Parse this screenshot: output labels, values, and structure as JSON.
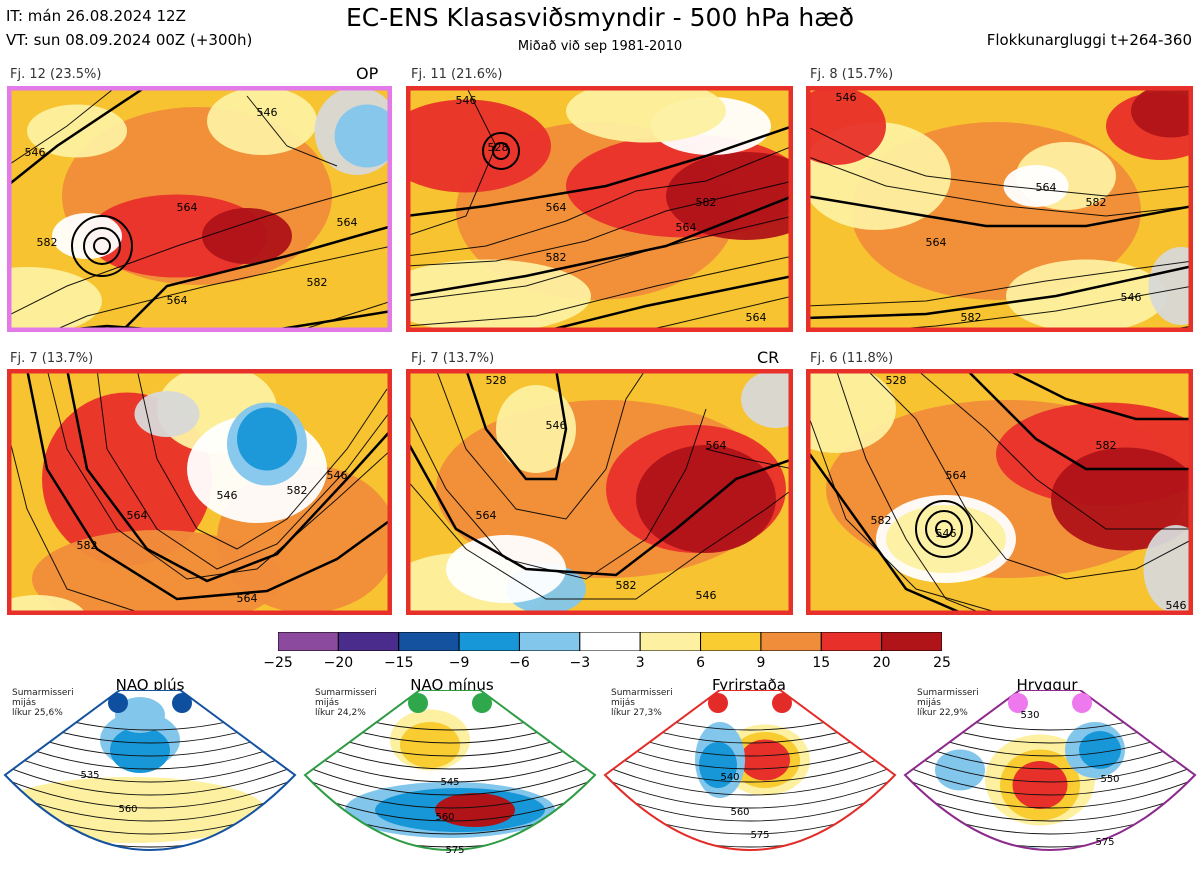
{
  "header": {
    "it": "IT: mán 26.08.2024 12Z",
    "vt": "VT: sun 08.09.2024 00Z  (+300h)",
    "title": "EC-ENS Klasasviðsmyndir - 500 hPa hæð",
    "subtitle": "Miðað við sep 1981-2010",
    "window": "Flokkunargluggi t+264-360"
  },
  "panels": [
    {
      "label": "Fj. 12 (23.5%)",
      "tag": "OP",
      "border": "#e27ae7",
      "contours": [
        "546",
        "564",
        "564",
        "564",
        "582",
        "582",
        "546"
      ]
    },
    {
      "label": "Fj. 11 (21.6%)",
      "tag": "",
      "border": "#e8302a",
      "contours": [
        "546",
        "528",
        "564",
        "564",
        "582",
        "582",
        "564"
      ]
    },
    {
      "label": "Fj. 8 (15.7%)",
      "tag": "",
      "border": "#e8302a",
      "contours": [
        "546",
        "564",
        "564",
        "582",
        "582",
        "546"
      ]
    },
    {
      "label": "Fj. 7 (13.7%)",
      "tag": "",
      "border": "#e8302a",
      "contours": [
        "546",
        "564",
        "582",
        "582",
        "546",
        "564"
      ]
    },
    {
      "label": "Fj. 7 (13.7%)",
      "tag": "CR",
      "border": "#e8302a",
      "contours": [
        "528",
        "546",
        "564",
        "564",
        "582",
        "546"
      ]
    },
    {
      "label": "Fj. 6 (11.8%)",
      "tag": "",
      "border": "#e8302a",
      "contours": [
        "528",
        "546",
        "564",
        "582",
        "582",
        "546"
      ]
    }
  ],
  "colorbar": {
    "ticks": [
      "−25",
      "−20",
      "−15",
      "−9",
      "−6",
      "−3",
      "3",
      "6",
      "9",
      "15",
      "20",
      "25"
    ],
    "colors": [
      "#8b4a9e",
      "#4a2c8c",
      "#1452a0",
      "#1797d8",
      "#83c6ec",
      "#ffffff",
      "#fdf0a0",
      "#f9cc31",
      "#f08d3a",
      "#e8302a",
      "#b01318"
    ]
  },
  "regimes": [
    {
      "name": "NAO plús",
      "info": "Sumarmisseri\nmijás\nlíkur 25,6%",
      "color": "#1452a0",
      "dot": "#0e4fa0",
      "contours": [
        "535",
        "560"
      ]
    },
    {
      "name": "NAO mínus",
      "info": "Sumarmisseri\nmijás\nlíkur 24,2%",
      "color": "#2e9c45",
      "dot": "#2ea84a",
      "contours": [
        "545",
        "560",
        "575"
      ]
    },
    {
      "name": "Fyrirstaða",
      "info": "Sumarmisseri\nmijás\nlíkur 27,3%",
      "color": "#e32b27",
      "dot": "#e32b27",
      "contours": [
        "540",
        "560",
        "575"
      ]
    },
    {
      "name": "Hryggur",
      "info": "Sumarmisseri\nmijás\nlíkur 22,9%",
      "color": "#8c2a8c",
      "dot": "#ee79ee",
      "contours": [
        "530",
        "550",
        "575"
      ]
    }
  ]
}
